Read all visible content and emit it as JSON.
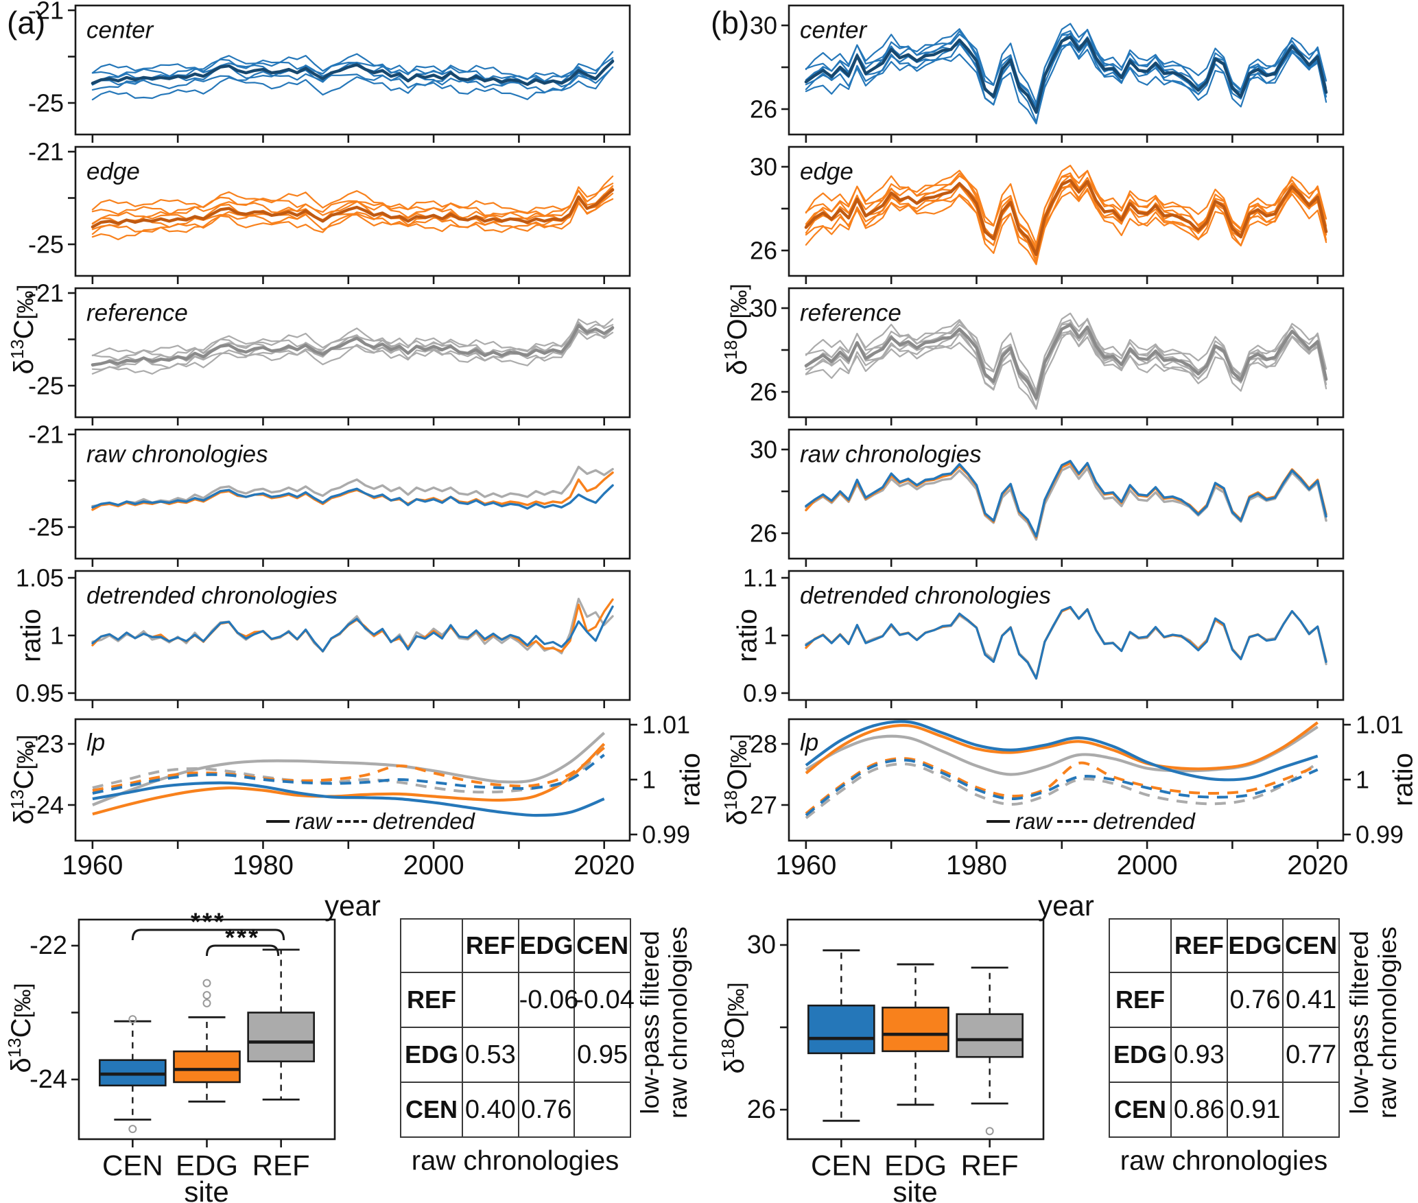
{
  "figure": {
    "a_label": "(a)",
    "b_label": "(b)"
  },
  "labels": {
    "c13": {
      "d": "δ",
      "sup": "13",
      "base": "C",
      "unit": "[‰]"
    },
    "o18": {
      "d": "δ",
      "sup": "18",
      "base": "O",
      "unit": "[‰]"
    },
    "ratio": "ratio",
    "year": "year",
    "site": "site",
    "legend_raw": "raw",
    "legend_detrended": "detrended",
    "panel_titles": {
      "center": "center",
      "edge": "edge",
      "reference": "reference",
      "raw": "raw chronologies",
      "detrended": "detrended chronologies",
      "lp": "lp"
    },
    "lowpass_line1": "low-pass filtered",
    "lowpass_line2": "raw chronologies"
  },
  "colors": {
    "cen": "#2577B9",
    "cen_dark": "#17486F",
    "edg": "#F8811C",
    "edg_dark": "#C05A11",
    "ref": "#ABABAB",
    "ref_dark": "#8A8A8A",
    "axis": "#1A1A1A"
  },
  "chart_data": {
    "type": "line",
    "description": "Tree-ring stable isotope chronologies 1960-2021 for center, edge, reference sites; raw and detrended chronologies, low-pass filtered curves, site boxplots and correlation tables",
    "years": {
      "start": 1960,
      "end": 2021
    },
    "x_ticks": [
      {
        "year": 1960,
        "label": "1960"
      },
      {
        "year": 1970,
        "label": ""
      },
      {
        "year": 1980,
        "label": "1980"
      },
      {
        "year": 1990,
        "label": ""
      },
      {
        "year": 2000,
        "label": "2000"
      },
      {
        "year": 2010,
        "label": ""
      },
      {
        "year": 2020,
        "label": "2020"
      }
    ],
    "lp_years": [
      1960,
      1964,
      1968,
      1972,
      1976,
      1980,
      1984,
      1988,
      1992,
      1996,
      2000,
      2004,
      2008,
      2012,
      2016,
      2020
    ],
    "a": {
      "isotope": "d13C [permil]",
      "axes": {
        "site_ticks": [
          {
            "v": -21,
            "label": "-21"
          },
          {
            "v": -23,
            "label": ""
          },
          {
            "v": -25,
            "label": "-25"
          }
        ],
        "det_ticks": [
          {
            "v": 1.05,
            "label": "1.05"
          },
          {
            "v": 1,
            "label": "1"
          },
          {
            "v": 0.95,
            "label": "0.95"
          }
        ],
        "lp_ticks": [
          {
            "v": -23,
            "label": "-23"
          },
          {
            "v": -24,
            "label": "-24"
          }
        ],
        "ratio_ticks": [
          {
            "v": 1.01,
            "label": "1.01"
          },
          {
            "v": 1,
            "label": "1"
          },
          {
            "v": 0.99,
            "label": "0.99"
          }
        ],
        "box_ticks": [
          {
            "v": -22,
            "label": "-22"
          },
          {
            "v": -23,
            "label": ""
          },
          {
            "v": -24,
            "label": "-24"
          }
        ]
      },
      "chronologies": {
        "cen": [
          -24.15,
          -24.0,
          -23.95,
          -24.05,
          -23.9,
          -24.0,
          -23.9,
          -23.95,
          -23.9,
          -23.95,
          -23.85,
          -23.9,
          -23.75,
          -23.85,
          -23.65,
          -23.45,
          -23.4,
          -23.6,
          -23.7,
          -23.6,
          -23.55,
          -23.7,
          -23.65,
          -23.55,
          -23.7,
          -23.5,
          -23.75,
          -23.95,
          -23.7,
          -23.6,
          -23.45,
          -23.35,
          -23.55,
          -23.7,
          -23.6,
          -23.85,
          -23.75,
          -24.05,
          -23.8,
          -23.9,
          -23.8,
          -23.95,
          -23.7,
          -23.95,
          -24.0,
          -23.85,
          -24.05,
          -23.95,
          -24.1,
          -24.0,
          -24.05,
          -24.2,
          -24.0,
          -24.15,
          -24.05,
          -24.15,
          -23.95,
          -23.6,
          -23.8,
          -23.95,
          -23.55,
          -23.2
        ],
        "edg": [
          -24.25,
          -24.05,
          -24.0,
          -24.1,
          -23.95,
          -24.05,
          -23.95,
          -24.0,
          -23.9,
          -24.0,
          -23.9,
          -23.95,
          -23.8,
          -23.9,
          -23.7,
          -23.5,
          -23.45,
          -23.65,
          -23.7,
          -23.6,
          -23.6,
          -23.75,
          -23.7,
          -23.6,
          -23.75,
          -23.55,
          -23.8,
          -24.0,
          -23.75,
          -23.65,
          -23.5,
          -23.4,
          -23.55,
          -23.75,
          -23.65,
          -23.85,
          -23.8,
          -24.0,
          -23.8,
          -23.85,
          -23.75,
          -23.9,
          -23.7,
          -23.9,
          -23.95,
          -23.8,
          -24.0,
          -23.9,
          -24.0,
          -23.9,
          -23.95,
          -24.05,
          -23.9,
          -24.0,
          -23.9,
          -23.95,
          -23.7,
          -22.95,
          -23.45,
          -23.3,
          -22.95,
          -22.65
        ],
        "ref": [
          -24.1,
          -24.05,
          -23.95,
          -24.05,
          -23.9,
          -23.95,
          -23.8,
          -23.95,
          -23.85,
          -23.9,
          -23.75,
          -23.85,
          -23.6,
          -23.75,
          -23.5,
          -23.3,
          -23.25,
          -23.45,
          -23.55,
          -23.4,
          -23.35,
          -23.5,
          -23.45,
          -23.3,
          -23.45,
          -23.25,
          -23.5,
          -23.65,
          -23.4,
          -23.3,
          -23.1,
          -22.95,
          -23.2,
          -23.35,
          -23.2,
          -23.45,
          -23.3,
          -23.6,
          -23.3,
          -23.45,
          -23.3,
          -23.45,
          -23.3,
          -23.55,
          -23.6,
          -23.45,
          -23.7,
          -23.55,
          -23.7,
          -23.55,
          -23.6,
          -23.7,
          -23.45,
          -23.6,
          -23.45,
          -23.55,
          -23.1,
          -22.4,
          -22.7,
          -22.55,
          -22.75,
          -22.5
        ]
      },
      "replicates": {
        "noise_amp": 0.17,
        "offsets": {
          "cen": [
            0.45,
            0.28,
            0.12,
            -0.1,
            -0.3,
            -0.7
          ],
          "edg": [
            0.75,
            0.5,
            0.3,
            0.1,
            -0.12,
            -0.3,
            -0.5
          ],
          "ref": [
            0.4,
            0.25,
            0.1,
            -0.05,
            -0.2,
            -0.38
          ]
        }
      },
      "lp": {
        "raw": {
          "cen": [
            -23.9,
            -23.8,
            -23.7,
            -23.65,
            -23.64,
            -23.7,
            -23.8,
            -23.87,
            -23.88,
            -23.9,
            -23.96,
            -24.04,
            -24.12,
            -24.17,
            -24.12,
            -23.9
          ],
          "edg": [
            -24.15,
            -24.0,
            -23.87,
            -23.77,
            -23.72,
            -23.76,
            -23.84,
            -23.86,
            -23.83,
            -23.82,
            -23.86,
            -23.9,
            -23.92,
            -23.85,
            -23.55,
            -23.0
          ],
          "ref": [
            -24.0,
            -23.78,
            -23.58,
            -23.42,
            -23.32,
            -23.28,
            -23.28,
            -23.3,
            -23.32,
            -23.36,
            -23.44,
            -23.54,
            -23.62,
            -23.58,
            -23.3,
            -22.82
          ]
        },
        "detrended": {
          "cen": [
            0.9975,
            0.9988,
            1.0,
            1.0008,
            1.0008,
            1.0,
            0.9995,
            0.9993,
            0.9995,
            1.0,
            0.9995,
            0.9988,
            0.9985,
            0.9985,
            1.0,
            1.0045
          ],
          "edg": [
            0.998,
            0.9992,
            1.0005,
            1.0012,
            1.001,
            1.0002,
            0.9998,
            1.0,
            1.0008,
            1.0025,
            1.0012,
            0.9998,
            0.999,
            0.999,
            1.001,
            1.0058
          ],
          "ref": [
            0.9985,
            1.0,
            1.0015,
            1.002,
            1.0015,
            1.0005,
            0.9998,
            0.9995,
            1.0,
            0.9995,
            0.9985,
            0.9978,
            0.9978,
            0.9985,
            1.0,
            1.006
          ]
        }
      },
      "box": {
        "categories": [
          "CEN",
          "EDG",
          "REF"
        ],
        "stats": {
          "CEN": {
            "low": -24.6,
            "q1": -24.09,
            "med": -23.92,
            "q3": -23.71,
            "high": -23.13,
            "outliers": [
              -23.1,
              -24.74
            ]
          },
          "EDG": {
            "low": -24.33,
            "q1": -24.04,
            "med": -23.85,
            "q3": -23.58,
            "high": -23.07,
            "outliers": [
              -22.56,
              -22.74,
              -22.86
            ]
          },
          "REF": {
            "low": -24.3,
            "q1": -23.73,
            "med": -23.44,
            "q3": -23.0,
            "high": -22.06,
            "outliers": []
          }
        },
        "significance": [
          {
            "from": "CEN",
            "to": "REF",
            "label": "***"
          },
          {
            "from": "EDG",
            "to": "REF",
            "label": "***"
          }
        ]
      },
      "table": {
        "cols": [
          "REF",
          "EDG",
          "CEN"
        ],
        "rows": [
          "REF",
          "EDG",
          "CEN"
        ],
        "values": [
          [
            "",
            "-0.06",
            "-0.04"
          ],
          [
            "0.53",
            "",
            "0.95"
          ],
          [
            "0.40",
            "0.76",
            ""
          ]
        ],
        "xlabel": "raw chronologies"
      }
    },
    "b": {
      "isotope": "d18O [permil]",
      "axes": {
        "site_ticks": [
          {
            "v": 30,
            "label": "30"
          },
          {
            "v": 28,
            "label": ""
          },
          {
            "v": 26,
            "label": "26"
          }
        ],
        "det_ticks": [
          {
            "v": 1.1,
            "label": "1.1"
          },
          {
            "v": 1,
            "label": "1"
          },
          {
            "v": 0.9,
            "label": "0.9"
          }
        ],
        "lp_ticks": [
          {
            "v": 28,
            "label": "28"
          },
          {
            "v": 27,
            "label": "27"
          }
        ],
        "ratio_ticks": [
          {
            "v": 1.01,
            "label": "1.01"
          },
          {
            "v": 1,
            "label": "1"
          },
          {
            "v": 0.99,
            "label": "0.99"
          }
        ],
        "box_ticks": [
          {
            "v": 30,
            "label": "30"
          },
          {
            "v": 28,
            "label": ""
          },
          {
            "v": 26,
            "label": "26"
          }
        ]
      },
      "chronologies": {
        "cen": [
          27.3,
          27.6,
          27.85,
          27.55,
          28.0,
          27.6,
          28.55,
          27.7,
          27.95,
          28.2,
          28.85,
          28.45,
          28.6,
          28.3,
          28.55,
          28.6,
          28.8,
          28.85,
          29.3,
          28.85,
          28.3,
          26.95,
          26.6,
          27.9,
          28.35,
          27.05,
          26.65,
          25.85,
          27.6,
          28.45,
          29.25,
          29.45,
          28.85,
          29.35,
          28.45,
          27.9,
          27.95,
          27.5,
          28.3,
          27.85,
          27.8,
          28.2,
          27.7,
          27.75,
          27.6,
          27.3,
          26.9,
          27.3,
          28.4,
          28.15,
          27.0,
          26.6,
          27.7,
          27.9,
          27.6,
          27.7,
          28.4,
          29.0,
          28.6,
          28.1,
          28.5,
          26.8
        ],
        "edg": [
          27.1,
          27.55,
          27.8,
          27.5,
          27.95,
          27.55,
          28.45,
          27.65,
          27.9,
          28.15,
          28.75,
          28.4,
          28.55,
          28.25,
          28.5,
          28.55,
          28.7,
          28.8,
          29.2,
          28.8,
          28.25,
          26.9,
          26.55,
          27.85,
          28.3,
          27.0,
          26.6,
          25.8,
          27.55,
          28.4,
          29.15,
          29.35,
          28.8,
          29.3,
          28.4,
          27.85,
          27.9,
          27.45,
          28.25,
          27.8,
          27.75,
          28.15,
          27.65,
          27.7,
          27.55,
          27.35,
          26.95,
          27.35,
          28.35,
          28.1,
          27.05,
          26.65,
          27.75,
          27.95,
          27.65,
          27.75,
          28.45,
          29.05,
          28.65,
          28.15,
          28.55,
          26.9
        ],
        "ref": [
          27.25,
          27.5,
          27.75,
          27.45,
          27.9,
          27.5,
          28.35,
          27.6,
          27.85,
          28.05,
          28.6,
          28.25,
          28.4,
          28.1,
          28.35,
          28.4,
          28.55,
          28.6,
          29.0,
          28.6,
          28.1,
          26.85,
          26.5,
          27.7,
          28.1,
          26.9,
          26.5,
          25.7,
          27.4,
          28.2,
          29.0,
          29.2,
          28.6,
          29.1,
          28.2,
          27.65,
          27.7,
          27.3,
          28.05,
          27.6,
          27.55,
          27.95,
          27.5,
          27.55,
          27.45,
          27.25,
          26.85,
          27.25,
          28.2,
          27.95,
          26.95,
          26.55,
          27.6,
          27.8,
          27.55,
          27.65,
          28.3,
          28.9,
          28.5,
          28.05,
          28.4,
          26.6
        ]
      },
      "replicates": {
        "noise_amp": 0.24,
        "offsets": {
          "cen": [
            0.6,
            0.4,
            0.22,
            0.05,
            -0.15,
            -0.35,
            -0.55
          ],
          "edg": [
            0.7,
            0.5,
            0.3,
            0.12,
            -0.05,
            -0.25,
            -0.45,
            -0.6
          ],
          "ref": [
            0.5,
            0.32,
            0.15,
            -0.02,
            -0.2,
            -0.38,
            -0.52
          ]
        }
      },
      "lp": {
        "raw": {
          "cen": [
            27.65,
            28.05,
            28.3,
            28.36,
            28.18,
            27.98,
            27.9,
            27.98,
            28.1,
            27.96,
            27.7,
            27.52,
            27.42,
            27.44,
            27.62,
            27.8
          ],
          "edg": [
            27.52,
            27.95,
            28.22,
            28.3,
            28.12,
            27.92,
            27.86,
            27.94,
            28.04,
            27.9,
            27.68,
            27.6,
            27.6,
            27.68,
            27.95,
            28.35
          ],
          "ref": [
            27.58,
            27.9,
            28.1,
            28.1,
            27.88,
            27.64,
            27.5,
            27.62,
            27.82,
            27.76,
            27.6,
            27.56,
            27.58,
            27.66,
            27.92,
            28.28
          ]
        },
        "detrended": {
          "cen": [
            0.9935,
            0.9985,
            1.0025,
            1.0035,
            1.0012,
            0.9982,
            0.9965,
            0.9978,
            1.0005,
            1.0,
            0.9985,
            0.9972,
            0.9968,
            0.9972,
            0.9992,
            1.0018
          ],
          "edg": [
            0.9938,
            0.9988,
            1.0028,
            1.0038,
            1.0016,
            0.9986,
            0.997,
            0.9982,
            1.003,
            1.0005,
            0.9988,
            0.9978,
            0.9975,
            0.998,
            1.0,
            1.0025
          ],
          "ref": [
            0.993,
            0.9978,
            1.0018,
            1.0028,
            1.0005,
            0.9972,
            0.9955,
            0.997,
            1.0,
            0.9993,
            0.9972,
            0.996,
            0.9956,
            0.9964,
            0.999,
            1.003
          ]
        }
      },
      "box": {
        "categories": [
          "CEN",
          "EDG",
          "REF"
        ],
        "stats": {
          "CEN": {
            "low": 25.73,
            "q1": 27.37,
            "med": 27.73,
            "q3": 28.53,
            "high": 29.87,
            "outliers": []
          },
          "EDG": {
            "low": 26.12,
            "q1": 27.42,
            "med": 27.83,
            "q3": 28.48,
            "high": 29.53,
            "outliers": []
          },
          "REF": {
            "low": 26.15,
            "q1": 27.28,
            "med": 27.7,
            "q3": 28.32,
            "high": 29.45,
            "outliers": [
              25.48
            ]
          }
        },
        "significance": []
      },
      "table": {
        "cols": [
          "REF",
          "EDG",
          "CEN"
        ],
        "rows": [
          "REF",
          "EDG",
          "CEN"
        ],
        "values": [
          [
            "",
            "0.76",
            "0.41"
          ],
          [
            "0.93",
            "",
            "0.77"
          ],
          [
            "0.86",
            "0.91",
            ""
          ]
        ],
        "xlabel": "raw chronologies"
      }
    }
  }
}
